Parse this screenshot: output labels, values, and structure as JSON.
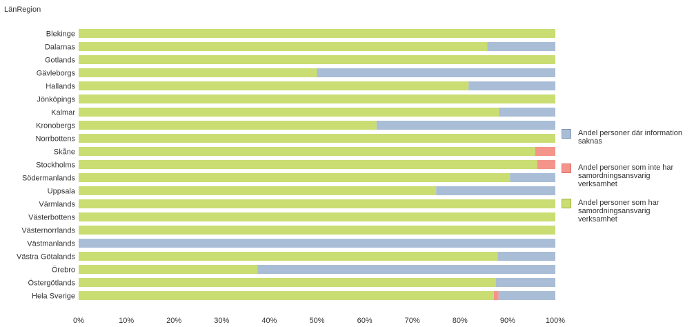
{
  "chart_data": {
    "type": "bar",
    "orientation": "horizontal",
    "stacked": true,
    "dimension_label": "LänRegion",
    "categories": [
      "Blekinge",
      "Dalarnas",
      "Gotlands",
      "Gävleborgs",
      "Hallands",
      "Jönköpings",
      "Kalmar",
      "Kronobergs",
      "Norrbottens",
      "Skåne",
      "Stockholms",
      "Södermanlands",
      "Uppsala",
      "Värmlands",
      "Västerbottens",
      "Västernorrlands",
      "Västmanlands",
      "Västra Götalands",
      "Örebro",
      "Östergötlands",
      "Hela Sverige"
    ],
    "series": [
      {
        "name": "Andel personer som har samordningsansvarig verksamhet",
        "color": "#c9dd72",
        "values": [
          100,
          85.7,
          100,
          50,
          81.8,
          100,
          88.2,
          62.5,
          100,
          95.8,
          96.2,
          90.5,
          75,
          100,
          100,
          100,
          0,
          87.9,
          37.5,
          87.5,
          87.1
        ]
      },
      {
        "name": "Andel personer som inte har samordningsansvarig verksamhet",
        "color": "#f4948a",
        "values": [
          0,
          0,
          0,
          0,
          0,
          0,
          0,
          0,
          0,
          4.2,
          3.8,
          0,
          0,
          0,
          0,
          0,
          0,
          0,
          0,
          0,
          1
        ]
      },
      {
        "name": "Andel personer där information saknas",
        "color": "#a9bdd6",
        "values": [
          0,
          14.3,
          0,
          50,
          18.2,
          0,
          11.8,
          37.5,
          0,
          0,
          0,
          9.5,
          25,
          0,
          0,
          0,
          100,
          12.1,
          62.5,
          12.5,
          11.9
        ]
      }
    ],
    "x_ticks": [
      "0%",
      "10%",
      "20%",
      "30%",
      "40%",
      "50%",
      "60%",
      "70%",
      "80%",
      "90%",
      "100%"
    ],
    "xlim": [
      0,
      100
    ],
    "grid": false,
    "legend_position": "right"
  },
  "legend": [
    {
      "label": "Andel personer där information saknas",
      "color": "#a9bdd6",
      "border": "#8296b4"
    },
    {
      "label": "Andel personer som inte har samordningsansvarig verksamhet",
      "color": "#f4948a",
      "border": "#d46a60"
    },
    {
      "label": "Andel personer som har samordningsansvarig verksamhet",
      "color": "#c9dd72",
      "border": "#9cb23e"
    }
  ]
}
